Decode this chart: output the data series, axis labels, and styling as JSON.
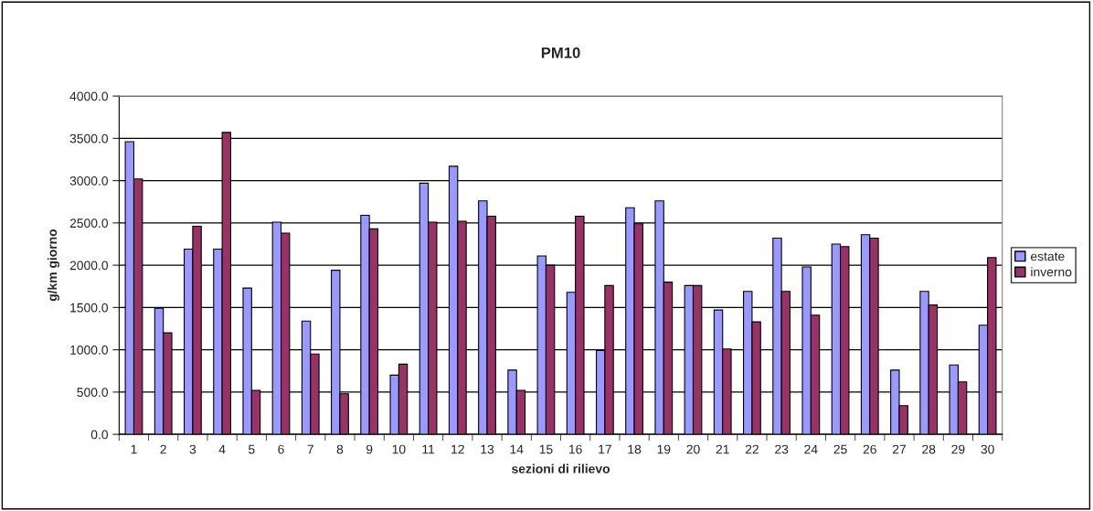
{
  "chart_data": {
    "type": "bar",
    "title": "PM10",
    "xlabel": "sezioni di rilievo",
    "ylabel": "g/km giorno",
    "categories": [
      "1",
      "2",
      "3",
      "4",
      "5",
      "6",
      "7",
      "8",
      "9",
      "10",
      "11",
      "12",
      "13",
      "14",
      "15",
      "16",
      "17",
      "18",
      "19",
      "20",
      "21",
      "22",
      "23",
      "24",
      "25",
      "26",
      "27",
      "28",
      "29",
      "30"
    ],
    "series": [
      {
        "name": "estate",
        "color": "#9999ff",
        "values": [
          3460,
          1490,
          2190,
          2190,
          1730,
          2510,
          1340,
          1940,
          2590,
          700,
          2970,
          3170,
          2760,
          760,
          2110,
          1680,
          990,
          2680,
          2760,
          1760,
          1470,
          1690,
          2320,
          1980,
          2250,
          2360,
          760,
          1690,
          820,
          1290
        ]
      },
      {
        "name": "inverno",
        "color": "#993366",
        "values": [
          3020,
          1200,
          2460,
          3570,
          520,
          2380,
          950,
          480,
          2430,
          830,
          2510,
          2520,
          2580,
          520,
          2000,
          2580,
          1760,
          2490,
          1800,
          1760,
          1010,
          1330,
          1690,
          1410,
          2220,
          2320,
          340,
          1530,
          620,
          2090
        ]
      }
    ],
    "ylim": [
      0,
      4000
    ],
    "yticks": [
      {
        "value": 0,
        "label": "0.0"
      },
      {
        "value": 500,
        "label": "500.0"
      },
      {
        "value": 1000,
        "label": "1000.0"
      },
      {
        "value": 1500,
        "label": "1500.0"
      },
      {
        "value": 2000,
        "label": "2000.0"
      },
      {
        "value": 2500,
        "label": "2500.0"
      },
      {
        "value": 3000,
        "label": "3000.0"
      },
      {
        "value": 3500,
        "label": "3500.0"
      },
      {
        "value": 4000,
        "label": "4000.0"
      }
    ],
    "grid": "y",
    "legend": "right"
  }
}
